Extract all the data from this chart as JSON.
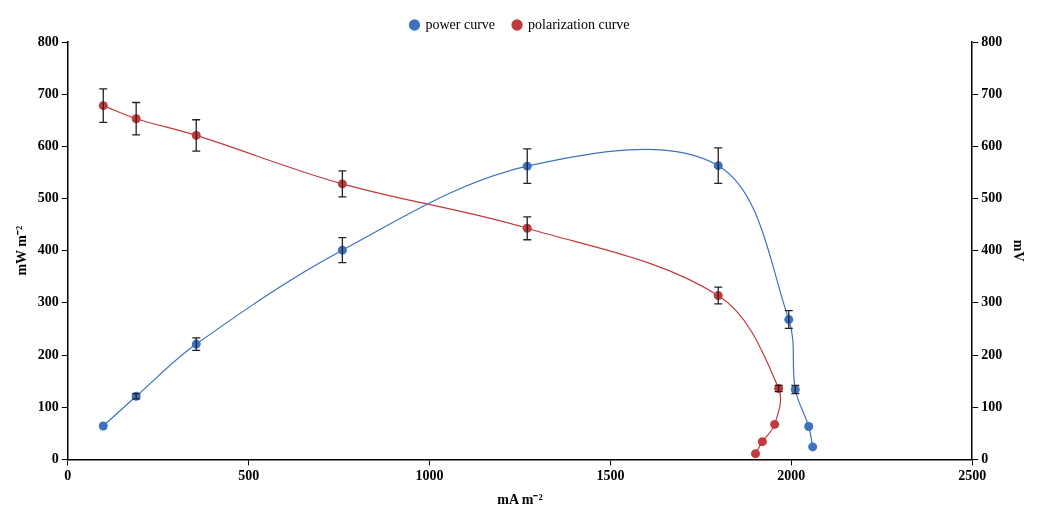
{
  "chart_data": {
    "type": "line",
    "xlabel": "mA m⁻²",
    "ylabel": "mW m⁻²",
    "y2label": "mV",
    "xlim": [
      0,
      2500
    ],
    "xticks": [
      0,
      500,
      1000,
      1500,
      2000,
      2500
    ],
    "ylim": [
      0,
      800
    ],
    "yticks": [
      0,
      100,
      200,
      300,
      400,
      500,
      600,
      700,
      800
    ],
    "y2lim": [
      0,
      800
    ],
    "y2ticks": [
      0,
      100,
      200,
      300,
      400,
      500,
      600,
      700,
      800
    ],
    "grid": false,
    "legend": "top",
    "marker": "circle",
    "line_style": "solid",
    "series": [
      {
        "name": "power curve",
        "color": "#3d72c0",
        "x": [
          98,
          189,
          355,
          759,
          1270,
          1798,
          1993,
          2011,
          2048,
          2059
        ],
        "values": [
          64,
          121,
          221,
          401,
          562,
          563,
          268,
          134,
          63,
          24
        ],
        "errors": [
          null,
          5,
          12,
          24,
          33,
          34,
          17,
          8,
          null,
          null
        ]
      },
      {
        "name": "polarization curve",
        "color": "#c23a3d",
        "axis": "y2",
        "x": [
          98,
          189,
          355,
          759,
          1270,
          1798,
          1965,
          1954,
          1920,
          1901
        ],
        "values": [
          678,
          653,
          621,
          528,
          443,
          314,
          136,
          67,
          34,
          11
        ],
        "errors": [
          32,
          31,
          30,
          25,
          22,
          16,
          6,
          null,
          null,
          null
        ]
      }
    ]
  }
}
